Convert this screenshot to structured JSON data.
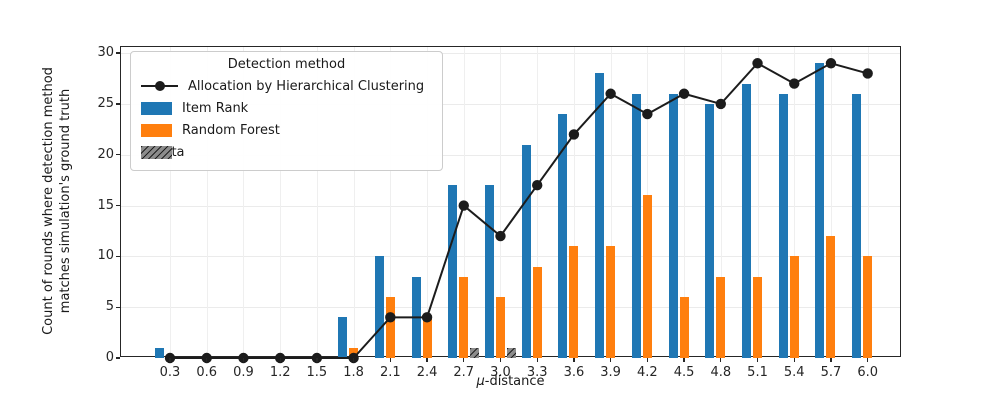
{
  "chart_data": {
    "type": "bar+line",
    "categories": [
      "0.3",
      "0.6",
      "0.9",
      "1.2",
      "1.5",
      "1.8",
      "2.1",
      "2.4",
      "2.7",
      "3.0",
      "3.3",
      "3.6",
      "3.9",
      "4.2",
      "4.5",
      "4.8",
      "5.1",
      "5.4",
      "5.7",
      "6.0"
    ],
    "series": [
      {
        "name": "Allocation by Hierarchical Clustering",
        "type": "line",
        "color": "#1c1c1c",
        "values": [
          0,
          0,
          0,
          0,
          0,
          0,
          4,
          4,
          15,
          12,
          17,
          22,
          26,
          24,
          26,
          25,
          29,
          27,
          29,
          28
        ]
      },
      {
        "name": "Item Rank",
        "type": "bar",
        "color": "#1f77b4",
        "values": [
          1,
          0,
          0,
          0,
          0,
          4,
          10,
          8,
          17,
          17,
          21,
          24,
          28,
          26,
          26,
          25,
          27,
          26,
          29,
          26
        ]
      },
      {
        "name": "Random Forest",
        "type": "bar",
        "color": "#ff7f0e",
        "values": [
          0,
          0,
          0,
          0,
          0,
          1,
          6,
          4,
          8,
          6,
          9,
          11,
          11,
          16,
          6,
          8,
          8,
          10,
          12,
          10
        ]
      },
      {
        "name": "Boruta",
        "type": "bar",
        "color": "#8c8c8c",
        "hatch": "/",
        "values": [
          0,
          0,
          0,
          0,
          0,
          0,
          0,
          0,
          1,
          1,
          0,
          0,
          0,
          0,
          0,
          0,
          0,
          0,
          0,
          0
        ]
      }
    ],
    "title": "",
    "xlabel": "μ-distance",
    "ylabel": "Count of rounds where detection method\nmatches simulation's ground truth",
    "ylim": [
      0,
      30.6
    ],
    "yticks": [
      0,
      5,
      10,
      15,
      20,
      25,
      30
    ],
    "grid": true,
    "legend": {
      "title": "Detection method",
      "position": "upper left"
    }
  }
}
